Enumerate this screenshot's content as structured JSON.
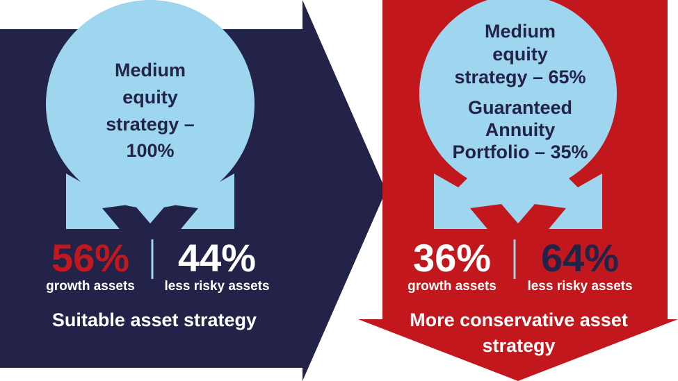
{
  "left": {
    "circle_lines": [
      "Medium",
      "equity",
      "strategy –",
      "100%"
    ],
    "growth": {
      "value": "56%",
      "label": "growth assets"
    },
    "less_risky": {
      "value": "44%",
      "label": "less risky assets"
    },
    "caption": "Suitable asset strategy"
  },
  "right": {
    "circle_lines": [
      "Medium",
      "equity",
      "strategy – 65%",
      "Guaranteed",
      "Annuity",
      "Portfolio – 35%"
    ],
    "growth": {
      "value": "36%",
      "label": "growth assets"
    },
    "less_risky": {
      "value": "64%",
      "label": "less risky assets"
    },
    "caption_lines": [
      "More conservative asset",
      "strategy"
    ]
  }
}
